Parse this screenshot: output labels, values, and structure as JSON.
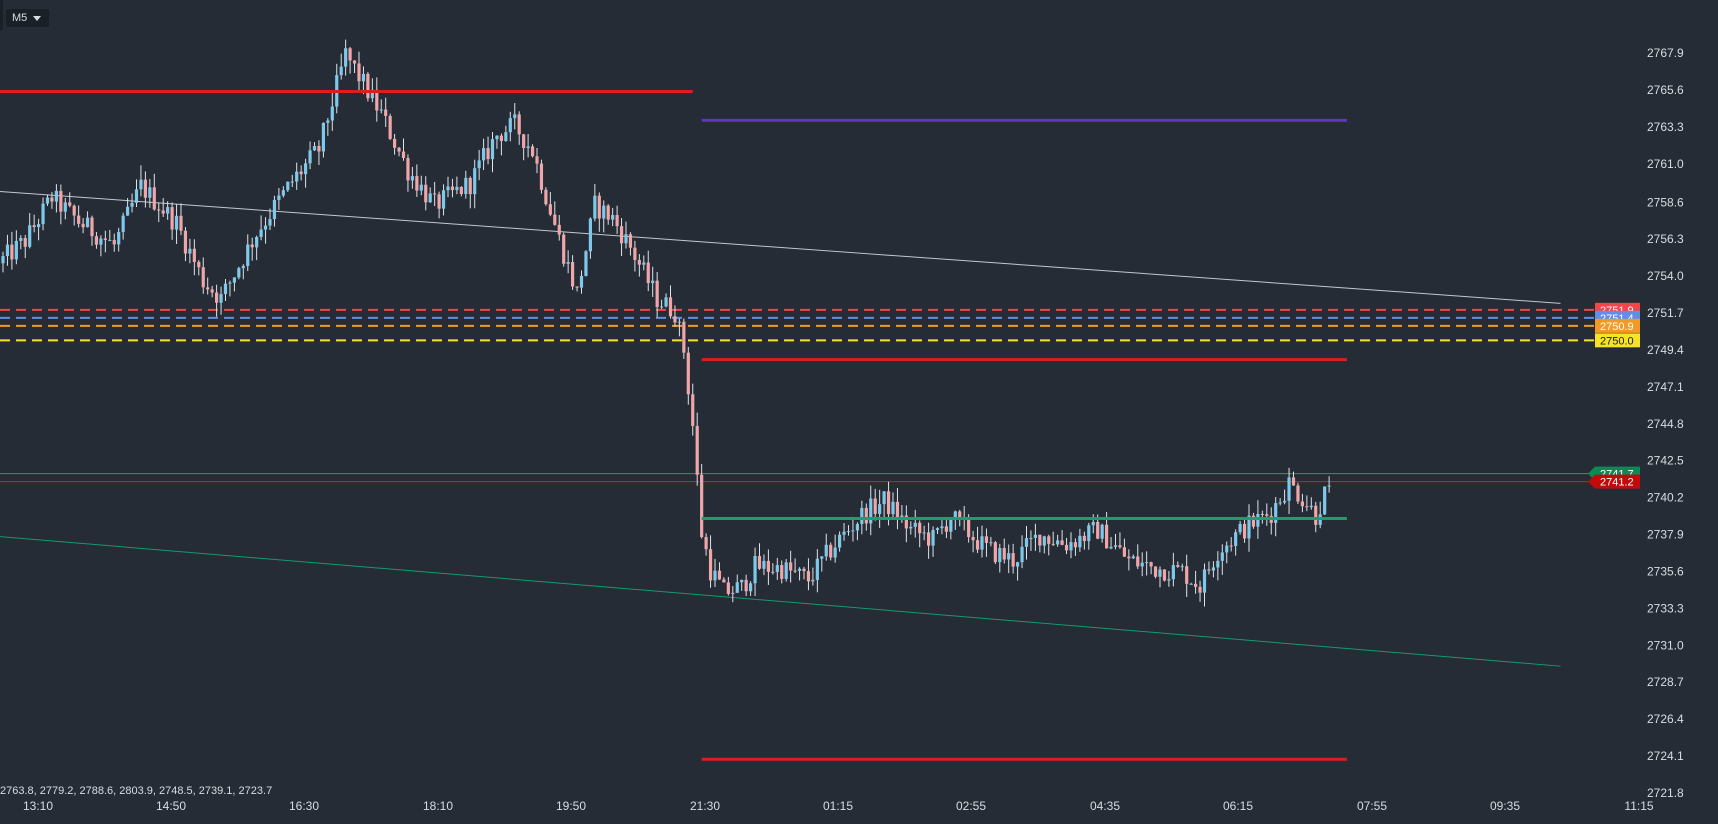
{
  "toolbar": {
    "timeframe_label": "M5"
  },
  "info_line": "2763.8, 2779.2, 2788.6, 2803.9, 2748.5, 2739.1, 2723.7",
  "colors": {
    "background": "#252c35",
    "bull": "#7ec8ea",
    "bear": "#f0a5a8",
    "wick": "#dde3ea",
    "axis_text": "#d8dde3",
    "red_level": "#e01d1d",
    "purple_level": "#5b34c9",
    "green_level": "#14a36c",
    "trend_white": "#c3c8cf",
    "trend_green": "#149a70",
    "dash_red": "#f04848",
    "dash_blue": "#5f8fe6",
    "dash_orange": "#f39a24",
    "dash_yellow": "#f6e227"
  },
  "chart_data": {
    "type": "candlestick",
    "ylim": [
      2721.8,
      2769.0
    ],
    "y_ticks": [
      "2767.9",
      "2765.6",
      "2763.3",
      "2761.0",
      "2758.6",
      "2756.3",
      "2754.0",
      "2751.7",
      "2749.4",
      "2747.1",
      "2744.8",
      "2742.5",
      "2740.2",
      "2737.9",
      "2735.6",
      "2733.3",
      "2731.0",
      "2728.7",
      "2726.4",
      "2724.1",
      "2721.8"
    ],
    "x_ticks": [
      "13:10",
      "14:50",
      "16:30",
      "18:10",
      "19:50",
      "21:30",
      "01:15",
      "02:55",
      "04:35",
      "06:15",
      "07:55",
      "09:35",
      "11:15"
    ],
    "anchors": [
      [
        0,
        2754.8
      ],
      [
        6,
        2756.2
      ],
      [
        12,
        2758.9
      ],
      [
        18,
        2757.4
      ],
      [
        26,
        2755.9
      ],
      [
        32,
        2759.6
      ],
      [
        40,
        2757.3
      ],
      [
        46,
        2753.7
      ],
      [
        50,
        2752.6
      ],
      [
        58,
        2756.7
      ],
      [
        66,
        2759.9
      ],
      [
        72,
        2761.9
      ],
      [
        78,
        2767.8
      ],
      [
        80,
        2766.9
      ],
      [
        86,
        2764.1
      ],
      [
        92,
        2760.6
      ],
      [
        98,
        2758.4
      ],
      [
        106,
        2759.8
      ],
      [
        112,
        2762.8
      ],
      [
        116,
        2763.4
      ],
      [
        120,
        2761.8
      ],
      [
        126,
        2756.3
      ],
      [
        130,
        2752.9
      ],
      [
        134,
        2758.4
      ],
      [
        138,
        2757.6
      ],
      [
        142,
        2755.8
      ],
      [
        148,
        2752.6
      ],
      [
        152,
        2751.8
      ],
      [
        154,
        2749.4
      ],
      [
        156,
        2744.7
      ],
      [
        158,
        2738.0
      ],
      [
        160,
        2735.7
      ],
      [
        163,
        2734.3
      ],
      [
        167,
        2734.6
      ],
      [
        170,
        2735.9
      ],
      [
        176,
        2735.8
      ],
      [
        182,
        2735.1
      ],
      [
        188,
        2737.3
      ],
      [
        194,
        2739.1
      ],
      [
        199,
        2740.0
      ],
      [
        205,
        2738.2
      ],
      [
        210,
        2737.6
      ],
      [
        214,
        2739.0
      ],
      [
        222,
        2737.0
      ],
      [
        228,
        2736.3
      ],
      [
        234,
        2737.9
      ],
      [
        240,
        2737.3
      ],
      [
        247,
        2738.2
      ],
      [
        254,
        2736.3
      ],
      [
        260,
        2735.8
      ],
      [
        266,
        2735.6
      ],
      [
        270,
        2734.7
      ],
      [
        274,
        2736.9
      ],
      [
        280,
        2738.3
      ],
      [
        286,
        2739.3
      ],
      [
        290,
        2741.1
      ],
      [
        293,
        2740.2
      ],
      [
        296,
        2739.1
      ],
      [
        298,
        2740.4
      ]
    ],
    "levels": [
      {
        "y": 2765.5,
        "t0": -2,
        "t1": 155,
        "color": "red_level",
        "width": 3
      },
      {
        "y": 2763.7,
        "t0": 157,
        "t1": 302,
        "color": "purple_level",
        "width": 3
      },
      {
        "y": 2748.8,
        "t0": 157,
        "t1": 302,
        "color": "red_level",
        "width": 3
      },
      {
        "y": 2738.9,
        "t0": 157,
        "t1": 302,
        "color": "green_level",
        "width": 3
      },
      {
        "y": 2723.9,
        "t0": 157,
        "t1": 302,
        "color": "red_level",
        "width": 3
      }
    ],
    "dashed_levels": [
      {
        "y": 2751.9,
        "color": "dash_red",
        "label": "2751.9"
      },
      {
        "y": 2751.4,
        "color": "dash_blue",
        "label": "2751.4"
      },
      {
        "y": 2750.9,
        "color": "dash_orange",
        "label": "2750.9"
      },
      {
        "y": 2750.0,
        "color": "dash_yellow",
        "label": "2750.0"
      }
    ],
    "horizontal_lines": [
      {
        "y": 2741.7,
        "color": "green_level",
        "label": "2741.7"
      },
      {
        "y": 2741.2,
        "color": "red_level",
        "label": "2741.2"
      }
    ],
    "trendlines": [
      {
        "t0": -2,
        "y0": 2759.3,
        "t1": 350,
        "y1": 2752.3,
        "color": "trend_white"
      },
      {
        "t0": -2,
        "y0": 2737.8,
        "t1": 350,
        "y1": 2729.7,
        "color": "trend_green"
      }
    ]
  }
}
